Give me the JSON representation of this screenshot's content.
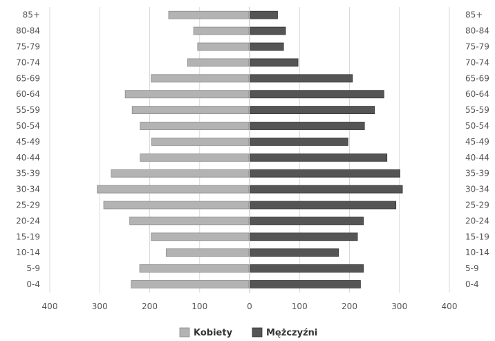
{
  "chart_data": {
    "type": "bar",
    "orientation": "horizontal",
    "layout": "population-pyramid",
    "categories": [
      "0-4",
      "5-9",
      "10-14",
      "15-19",
      "20-24",
      "25-29",
      "30-34",
      "35-39",
      "40-44",
      "45-49",
      "50-54",
      "55-59",
      "60-64",
      "65-69",
      "70-74",
      "75-79",
      "80-84",
      "85+"
    ],
    "series": [
      {
        "name": "Kobiety",
        "side": "left",
        "color": "#b3b3b3",
        "values": [
          237,
          220,
          167,
          197,
          240,
          292,
          305,
          277,
          219,
          196,
          219,
          235,
          249,
          197,
          124,
          104,
          112,
          162
        ]
      },
      {
        "name": "Mężczyźni",
        "side": "right",
        "color": "#555555",
        "values": [
          222,
          228,
          178,
          216,
          228,
          293,
          306,
          301,
          275,
          197,
          230,
          250,
          269,
          206,
          97,
          68,
          72,
          56
        ]
      }
    ],
    "xlim": [
      -400,
      400
    ],
    "x_ticks": [
      -400,
      -300,
      -200,
      -100,
      0,
      100,
      200,
      300,
      400
    ],
    "x_tick_labels": [
      "400",
      "300",
      "200",
      "100",
      "0",
      "100",
      "200",
      "300",
      "400"
    ],
    "grid": "vertical",
    "legend": "bottom-center",
    "category_labels_side": "both"
  }
}
